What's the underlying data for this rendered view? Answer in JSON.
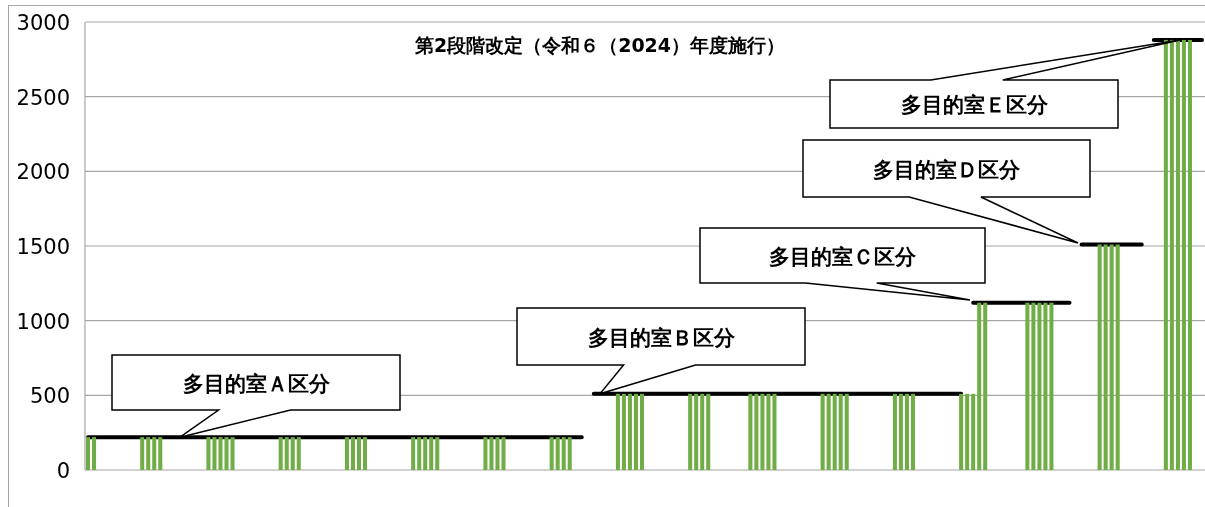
{
  "chart_data": {
    "type": "bar",
    "title": "第2段階改定（令和６（2024）年度施行）",
    "categories": [
      null,
      null,
      null,
      null,
      null,
      null,
      null,
      null,
      null,
      null,
      null,
      null,
      null,
      null,
      null,
      null,
      null,
      null,
      null,
      null,
      null,
      null,
      null,
      null,
      null,
      null,
      null,
      null,
      null,
      null,
      null,
      null,
      null,
      null,
      null,
      null,
      null,
      null,
      null,
      null,
      null,
      null,
      null,
      null,
      null,
      null,
      null,
      null,
      null,
      null,
      null,
      null,
      null,
      null,
      null,
      null,
      null,
      null,
      null,
      null,
      null,
      null,
      null,
      null,
      null,
      null,
      null,
      null,
      null,
      null,
      null,
      null,
      null,
      null,
      null,
      null,
      null,
      null,
      null,
      null,
      null,
      null,
      null,
      null,
      null,
      null,
      null,
      null,
      null,
      null,
      null,
      null,
      null,
      null,
      null,
      null,
      null,
      null,
      null,
      null,
      null,
      null,
      null,
      null,
      null,
      null,
      null,
      null,
      null,
      null,
      null,
      null,
      null,
      null,
      null,
      null,
      null,
      null,
      null,
      null,
      null,
      null,
      null,
      null,
      null,
      null,
      null,
      null,
      null,
      null,
      null,
      null,
      null,
      null,
      null,
      null,
      null,
      null,
      null,
      null,
      null,
      null,
      null,
      null,
      null,
      null,
      null,
      null,
      null,
      null,
      null,
      null,
      null,
      null,
      null,
      null,
      null,
      null,
      null,
      null,
      null,
      null,
      null,
      null,
      null,
      null,
      null,
      null,
      null,
      null,
      null,
      null,
      null,
      null,
      null,
      null,
      null,
      null,
      null,
      null,
      null,
      null,
      null,
      null,
      null,
      null
    ],
    "series": [
      {
        "color": "#70ad47",
        "values": [
          220,
          220,
          null,
          null,
          null,
          null,
          null,
          null,
          null,
          220,
          220,
          220,
          220,
          null,
          null,
          null,
          null,
          null,
          null,
          null,
          220,
          220,
          220,
          220,
          220,
          null,
          null,
          null,
          null,
          null,
          null,
          null,
          220,
          220,
          220,
          220,
          null,
          null,
          null,
          null,
          null,
          null,
          null,
          220,
          220,
          220,
          220,
          null,
          null,
          null,
          null,
          null,
          null,
          null,
          220,
          220,
          220,
          220,
          220,
          null,
          null,
          null,
          null,
          null,
          null,
          null,
          220,
          220,
          220,
          220,
          null,
          null,
          null,
          null,
          null,
          null,
          null,
          220,
          220,
          220,
          220,
          null,
          null,
          null,
          null,
          null,
          null,
          null,
          510,
          510,
          510,
          510,
          510,
          null,
          null,
          null,
          null,
          null,
          null,
          null,
          510,
          510,
          510,
          510,
          null,
          null,
          null,
          null,
          null,
          null,
          510,
          510,
          510,
          510,
          510,
          null,
          null,
          null,
          null,
          null,
          null,
          null,
          510,
          510,
          510,
          510,
          510,
          null,
          null,
          null,
          null,
          null,
          null,
          null,
          510,
          510,
          510,
          510,
          null,
          null,
          null,
          null,
          null,
          null,
          null,
          510,
          510,
          510,
          1120,
          1120,
          null,
          null,
          null,
          null,
          null,
          null,
          1120,
          1120,
          1120,
          1120,
          1120,
          null,
          null,
          null,
          null,
          null,
          null,
          null,
          1510,
          1510,
          1510,
          1510,
          null,
          null,
          null,
          null,
          null,
          null,
          null,
          2880,
          2880,
          2880,
          2880,
          2880,
          null,
          null
        ]
      },
      {
        "type": "line",
        "color": "#000000",
        "values": [
          220,
          220,
          220,
          220,
          220,
          220,
          220,
          220,
          220,
          220,
          220,
          220,
          220,
          220,
          220,
          220,
          220,
          220,
          220,
          220,
          220,
          220,
          220,
          220,
          220,
          220,
          220,
          220,
          220,
          220,
          220,
          220,
          220,
          220,
          220,
          220,
          220,
          220,
          220,
          220,
          220,
          220,
          220,
          220,
          220,
          220,
          220,
          220,
          220,
          220,
          220,
          220,
          220,
          220,
          220,
          220,
          220,
          220,
          220,
          220,
          220,
          220,
          220,
          220,
          220,
          220,
          220,
          220,
          220,
          220,
          220,
          220,
          220,
          220,
          220,
          220,
          220,
          220,
          220,
          220,
          220,
          220,
          220,
          null,
          510,
          510,
          510,
          510,
          510,
          510,
          510,
          510,
          510,
          510,
          510,
          510,
          510,
          510,
          510,
          510,
          510,
          510,
          510,
          510,
          510,
          510,
          510,
          510,
          510,
          510,
          510,
          510,
          510,
          510,
          510,
          510,
          510,
          510,
          510,
          510,
          510,
          510,
          510,
          510,
          510,
          510,
          510,
          510,
          510,
          510,
          510,
          510,
          510,
          510,
          510,
          510,
          510,
          510,
          510,
          510,
          510,
          510,
          510,
          510,
          510,
          510,
          null,
          1120,
          1120,
          1120,
          1120,
          1120,
          1120,
          1120,
          1120,
          1120,
          1120,
          1120,
          1120,
          1120,
          1120,
          1120,
          1120,
          1120,
          null,
          1510,
          1510,
          1510,
          1510,
          1510,
          1510,
          1510,
          1510,
          1510,
          1510,
          1510,
          null,
          2880,
          2880,
          2880,
          2880,
          2880,
          2880,
          2880,
          2880,
          2880
        ]
      }
    ],
    "ylim": [
      0,
      3000
    ],
    "yticks": [
      0,
      500,
      1000,
      1500,
      2000,
      2500,
      3000
    ],
    "grid": "y",
    "annotations": [
      {
        "text": "多目的室Ａ区分",
        "y": 220
      },
      {
        "text": "多目的室Ｂ区分",
        "y": 510
      },
      "多目的室Ｃ区分",
      "多目的室Ｄ区分",
      "多目的室Ｅ区分"
    ]
  }
}
